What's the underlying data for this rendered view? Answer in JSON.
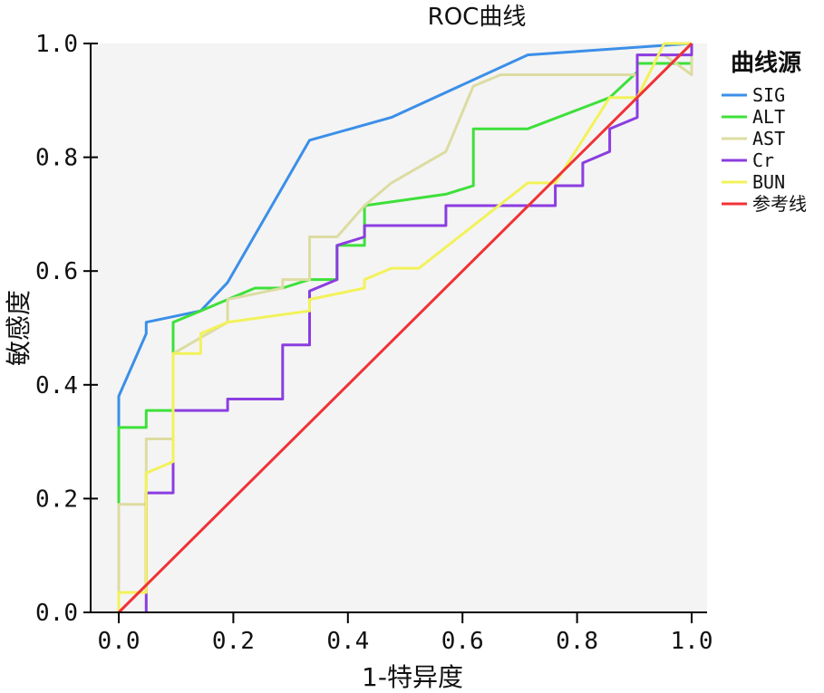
{
  "chart_data": {
    "type": "line",
    "title": "ROC曲线",
    "xlabel": "1-特异度",
    "ylabel": "敏感度",
    "xlim": [
      0,
      1
    ],
    "ylim": [
      0,
      1
    ],
    "xticks": [
      "0.0",
      "0.2",
      "0.4",
      "0.6",
      "0.8",
      "1.0"
    ],
    "yticks": [
      "0.0",
      "0.2",
      "0.4",
      "0.6",
      "0.8",
      "1.0"
    ],
    "legend_title": "曲线源",
    "legend_position": "right",
    "plot_background": "#f4f4f4",
    "series": [
      {
        "name": "SIG",
        "color": "#3b8fe8",
        "points": [
          [
            0.0,
            0.0
          ],
          [
            0.0,
            0.38
          ],
          [
            0.048,
            0.49
          ],
          [
            0.048,
            0.51
          ],
          [
            0.143,
            0.53
          ],
          [
            0.19,
            0.58
          ],
          [
            0.333,
            0.83
          ],
          [
            0.476,
            0.87
          ],
          [
            0.714,
            0.98
          ],
          [
            1.0,
            1.0
          ]
        ]
      },
      {
        "name": "ALT",
        "color": "#3ee03a",
        "points": [
          [
            0.0,
            0.0
          ],
          [
            0.0,
            0.19
          ],
          [
            0.0,
            0.325
          ],
          [
            0.048,
            0.325
          ],
          [
            0.048,
            0.355
          ],
          [
            0.095,
            0.355
          ],
          [
            0.095,
            0.49
          ],
          [
            0.095,
            0.51
          ],
          [
            0.143,
            0.53
          ],
          [
            0.19,
            0.55
          ],
          [
            0.238,
            0.57
          ],
          [
            0.286,
            0.57
          ],
          [
            0.333,
            0.585
          ],
          [
            0.381,
            0.585
          ],
          [
            0.381,
            0.645
          ],
          [
            0.429,
            0.645
          ],
          [
            0.429,
            0.715
          ],
          [
            0.571,
            0.735
          ],
          [
            0.619,
            0.75
          ],
          [
            0.619,
            0.85
          ],
          [
            0.714,
            0.85
          ],
          [
            0.857,
            0.905
          ],
          [
            0.905,
            0.95
          ],
          [
            0.905,
            0.965
          ],
          [
            1.0,
            0.965
          ],
          [
            1.0,
            1.0
          ]
        ]
      },
      {
        "name": "AST",
        "color": "#dcdca2",
        "points": [
          [
            0.0,
            0.0
          ],
          [
            0.0,
            0.19
          ],
          [
            0.048,
            0.19
          ],
          [
            0.048,
            0.305
          ],
          [
            0.095,
            0.305
          ],
          [
            0.095,
            0.455
          ],
          [
            0.19,
            0.51
          ],
          [
            0.19,
            0.55
          ],
          [
            0.286,
            0.57
          ],
          [
            0.286,
            0.585
          ],
          [
            0.333,
            0.585
          ],
          [
            0.333,
            0.66
          ],
          [
            0.381,
            0.66
          ],
          [
            0.429,
            0.715
          ],
          [
            0.476,
            0.755
          ],
          [
            0.571,
            0.81
          ],
          [
            0.619,
            0.925
          ],
          [
            0.667,
            0.945
          ],
          [
            0.905,
            0.945
          ],
          [
            0.905,
            0.98
          ],
          [
            0.952,
            0.98
          ],
          [
            1.0,
            0.945
          ],
          [
            1.0,
            1.0
          ]
        ]
      },
      {
        "name": "Cr",
        "color": "#8b3de0",
        "points": [
          [
            0.048,
            0.0
          ],
          [
            0.048,
            0.21
          ],
          [
            0.095,
            0.21
          ],
          [
            0.095,
            0.265
          ],
          [
            0.095,
            0.355
          ],
          [
            0.19,
            0.355
          ],
          [
            0.19,
            0.375
          ],
          [
            0.286,
            0.375
          ],
          [
            0.286,
            0.47
          ],
          [
            0.333,
            0.47
          ],
          [
            0.333,
            0.565
          ],
          [
            0.381,
            0.585
          ],
          [
            0.381,
            0.645
          ],
          [
            0.429,
            0.66
          ],
          [
            0.429,
            0.68
          ],
          [
            0.571,
            0.68
          ],
          [
            0.571,
            0.715
          ],
          [
            0.762,
            0.715
          ],
          [
            0.762,
            0.75
          ],
          [
            0.81,
            0.75
          ],
          [
            0.81,
            0.79
          ],
          [
            0.857,
            0.81
          ],
          [
            0.857,
            0.85
          ],
          [
            0.905,
            0.87
          ],
          [
            0.905,
            0.98
          ],
          [
            1.0,
            0.98
          ],
          [
            1.0,
            1.0
          ]
        ]
      },
      {
        "name": "BUN",
        "color": "#f2f25a",
        "points": [
          [
            0.0,
            0.0
          ],
          [
            0.0,
            0.035
          ],
          [
            0.048,
            0.035
          ],
          [
            0.048,
            0.245
          ],
          [
            0.095,
            0.265
          ],
          [
            0.095,
            0.455
          ],
          [
            0.143,
            0.455
          ],
          [
            0.143,
            0.49
          ],
          [
            0.19,
            0.51
          ],
          [
            0.333,
            0.53
          ],
          [
            0.333,
            0.55
          ],
          [
            0.429,
            0.57
          ],
          [
            0.429,
            0.585
          ],
          [
            0.476,
            0.605
          ],
          [
            0.524,
            0.605
          ],
          [
            0.714,
            0.755
          ],
          [
            0.762,
            0.755
          ],
          [
            0.857,
            0.905
          ],
          [
            0.905,
            0.905
          ],
          [
            0.952,
            1.0
          ],
          [
            1.0,
            1.0
          ]
        ]
      },
      {
        "name": "参考线",
        "color": "#f03236",
        "points": [
          [
            0.0,
            0.0
          ],
          [
            1.0,
            1.0
          ]
        ]
      }
    ]
  }
}
